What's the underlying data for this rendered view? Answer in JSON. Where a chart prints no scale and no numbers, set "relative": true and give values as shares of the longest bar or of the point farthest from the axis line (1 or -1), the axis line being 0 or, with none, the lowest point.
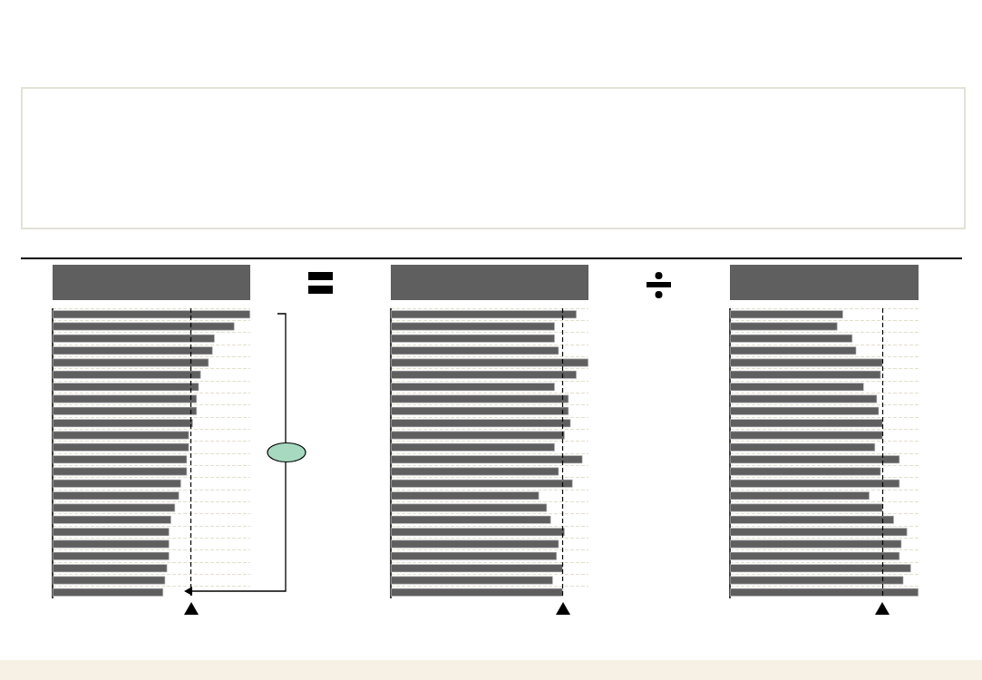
{
  "chart_data": [
    {
      "type": "bar",
      "orientation": "horizontal",
      "relative": true,
      "color": "#5f5f5f",
      "grid": "y",
      "categories": [
        null,
        null,
        null,
        null,
        null,
        null,
        null,
        null,
        null,
        null,
        null,
        null,
        null,
        null,
        null,
        null,
        null,
        null,
        null,
        null,
        null,
        null,
        null,
        null
      ],
      "values": [
        1,
        0.92,
        0.82,
        0.81,
        0.79,
        0.75,
        0.74,
        0.73,
        0.73,
        0.71,
        0.69,
        0.69,
        0.68,
        0.68,
        0.65,
        0.64,
        0.62,
        0.6,
        0.59,
        0.59,
        0.59,
        0.58,
        0.57,
        0.56
      ],
      "ref_lines": [
        {
          "axis": "x",
          "value": 0.7,
          "line_style": "dashed",
          "color": "#000000"
        }
      ]
    },
    {
      "type": "bar",
      "orientation": "horizontal",
      "relative": true,
      "color": "#5f5f5f",
      "grid": "y",
      "categories": [
        null,
        null,
        null,
        null,
        null,
        null,
        null,
        null,
        null,
        null,
        null,
        null,
        null,
        null,
        null,
        null,
        null,
        null,
        null,
        null,
        null,
        null,
        null,
        null
      ],
      "values": [
        0.94,
        0.83,
        0.83,
        0.85,
        1,
        0.94,
        0.83,
        0.9,
        0.9,
        0.91,
        0.88,
        0.83,
        0.97,
        0.85,
        0.92,
        0.75,
        0.79,
        0.81,
        0.88,
        0.85,
        0.84,
        0.87,
        0.82,
        0.87
      ],
      "ref_lines": [
        {
          "axis": "x",
          "value": 0.87,
          "line_style": "dashed",
          "color": "#000000"
        }
      ]
    },
    {
      "type": "bar",
      "orientation": "horizontal",
      "relative": true,
      "color": "#5f5f5f",
      "grid": "y",
      "categories": [
        null,
        null,
        null,
        null,
        null,
        null,
        null,
        null,
        null,
        null,
        null,
        null,
        null,
        null,
        null,
        null,
        null,
        null,
        null,
        null,
        null,
        null,
        null,
        null
      ],
      "values": [
        0.6,
        0.57,
        0.65,
        0.67,
        0.81,
        0.8,
        0.71,
        0.78,
        0.79,
        0.81,
        0.81,
        0.77,
        0.9,
        0.8,
        0.9,
        0.74,
        0.81,
        0.87,
        0.94,
        0.91,
        0.9,
        0.96,
        0.92,
        1
      ],
      "ref_lines": [
        {
          "axis": "x",
          "value": 0.81,
          "line_style": "dashed",
          "color": "#000000"
        }
      ]
    }
  ]
}
